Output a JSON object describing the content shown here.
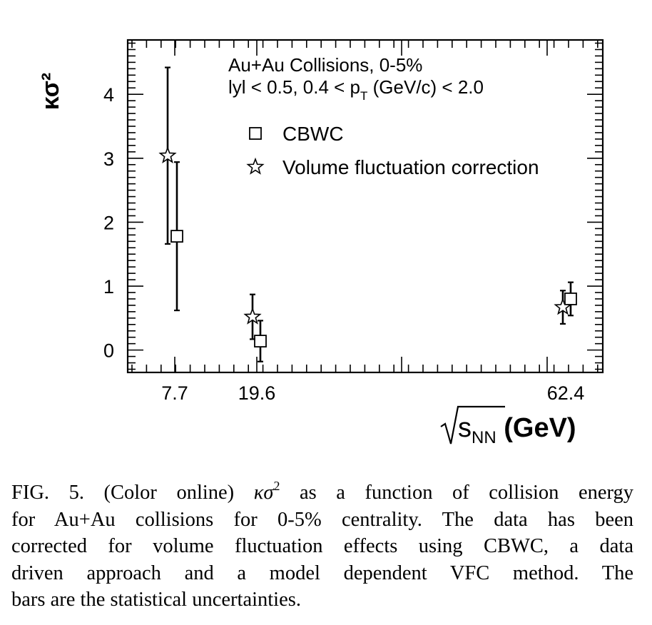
{
  "chart_data": {
    "type": "scatter",
    "ylabel": "κσ²",
    "xlabel": "√sNN (GeV)",
    "x_ticklabels": [
      "7.7",
      "19.6",
      "62.4"
    ],
    "y_ticklabels": [
      "0",
      "1",
      "2",
      "3",
      "4"
    ],
    "ylim": [
      -0.35,
      4.85
    ],
    "annotation_line1": "Au+Au Collisions, 0-5%",
    "annotation_line2_a": "lyl < 0.5, 0.4 < p",
    "annotation_line2_sub": "T",
    "annotation_line2_b": " (GeV/c) < 2.0",
    "legend_placement": "top-right",
    "series": [
      {
        "name": "CBWC",
        "marker": "open-square",
        "points": [
          {
            "x": 7.7,
            "y": 1.78,
            "err": 1.16
          },
          {
            "x": 19.6,
            "y": 0.14,
            "err": 0.32
          },
          {
            "x": 62.4,
            "y": 0.8,
            "err": 0.26
          }
        ]
      },
      {
        "name": "Volume fluctuation correction",
        "marker": "open-star",
        "points": [
          {
            "x": 7.7,
            "y": 3.04,
            "err": 1.38
          },
          {
            "x": 19.6,
            "y": 0.52,
            "err": 0.35
          },
          {
            "x": 62.4,
            "y": 0.67,
            "err": 0.26
          }
        ]
      }
    ]
  },
  "caption": {
    "line1_a": "FIG. 5.  (Color online) ",
    "line1_sym": "κσ",
    "line1_sup": "2",
    "line1_b": " as a function of collision energy",
    "line2": "for Au+Au collisions for 0-5% centrality.  The data has been",
    "line3": "corrected for volume fluctuation effects using CBWC, a data",
    "line4": "driven approach and a model dependent VFC method.  The",
    "line5": "bars are the statistical uncertainties."
  }
}
